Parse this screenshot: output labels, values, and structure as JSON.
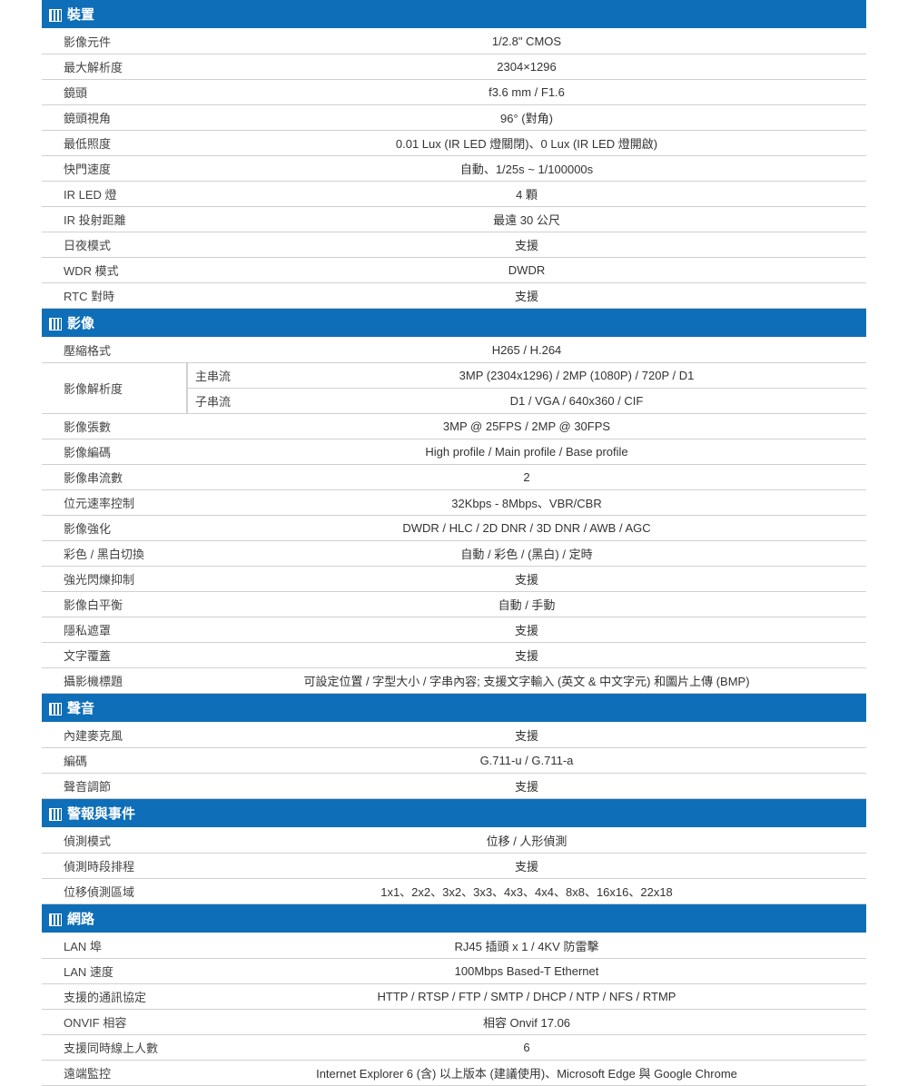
{
  "colors": {
    "header_bg": "#0e6eb8",
    "header_text": "#ffffff",
    "border": "#d0d0d0",
    "text": "#333333"
  },
  "sections": [
    {
      "title": "裝置",
      "rows": [
        {
          "label": "影像元件",
          "value": "1/2.8\" CMOS"
        },
        {
          "label": "最大解析度",
          "value": "2304×1296"
        },
        {
          "label": "鏡頭",
          "value": "f3.6 mm / F1.6"
        },
        {
          "label": "鏡頭視角",
          "value": "96° (對角)"
        },
        {
          "label": "最低照度",
          "value": "0.01 Lux (IR LED 燈關閉)、0 Lux (IR LED 燈開啟)"
        },
        {
          "label": "快門速度",
          "value": "自動、1/25s ~ 1/100000s"
        },
        {
          "label": "IR LED 燈",
          "value": "4 顆"
        },
        {
          "label": "IR 投射距離",
          "value": "最遠 30 公尺"
        },
        {
          "label": "日夜模式",
          "value": "支援"
        },
        {
          "label": "WDR 模式",
          "value": "DWDR"
        },
        {
          "label": "RTC 對時",
          "value": "支援"
        }
      ]
    },
    {
      "title": "影像",
      "rows": [
        {
          "label": "壓縮格式",
          "value": "H265 / H.264"
        },
        {
          "label": "影像解析度",
          "subrows": [
            {
              "sublabel": "主串流",
              "value": "3MP (2304x1296) / 2MP (1080P) / 720P / D1"
            },
            {
              "sublabel": "子串流",
              "value": "D1 / VGA / 640x360 / CIF"
            }
          ]
        },
        {
          "label": "影像張數",
          "value": "3MP @ 25FPS / 2MP @ 30FPS"
        },
        {
          "label": "影像編碼",
          "value": "High profile / Main profile / Base profile"
        },
        {
          "label": "影像串流數",
          "value": "2"
        },
        {
          "label": "位元速率控制",
          "value": "32Kbps - 8Mbps、VBR/CBR"
        },
        {
          "label": "影像強化",
          "value": "DWDR / HLC / 2D DNR / 3D DNR / AWB / AGC"
        },
        {
          "label": "彩色 / 黑白切換",
          "value": "自動 / 彩色 / (黑白) / 定時"
        },
        {
          "label": "強光閃爍抑制",
          "value": "支援"
        },
        {
          "label": "影像白平衡",
          "value": "自動 / 手動"
        },
        {
          "label": "隱私遮罩",
          "value": "支援"
        },
        {
          "label": "文字覆蓋",
          "value": "支援"
        },
        {
          "label": "攝影機標題",
          "value": "可設定位置 / 字型大小 / 字串內容; 支援文字輸入 (英文 & 中文字元) 和圖片上傳 (BMP)"
        }
      ]
    },
    {
      "title": "聲音",
      "rows": [
        {
          "label": "內建麥克風",
          "value": "支援"
        },
        {
          "label": "編碼",
          "value": "G.711-u / G.711-a"
        },
        {
          "label": "聲音調節",
          "value": "支援"
        }
      ]
    },
    {
      "title": "警報與事件",
      "rows": [
        {
          "label": "偵測模式",
          "value": "位移 / 人形偵測"
        },
        {
          "label": "偵測時段排程",
          "value": "支援"
        },
        {
          "label": "位移偵測區域",
          "value": "1x1、2x2、3x2、3x3、4x3、4x4、8x8、16x16、22x18"
        }
      ]
    },
    {
      "title": "網路",
      "rows": [
        {
          "label": "LAN 埠",
          "value": "RJ45 插頭  x 1 / 4KV 防雷擊"
        },
        {
          "label": "LAN 速度",
          "value": "100Mbps Based-T Ethernet"
        },
        {
          "label": "支援的通訊協定",
          "value": "HTTP / RTSP / FTP / SMTP / DHCP / NTP / NFS / RTMP"
        },
        {
          "label": "ONVIF 相容",
          "value": "相容 Onvif 17.06"
        },
        {
          "label": "支援同時線上人數",
          "value": "6"
        },
        {
          "label": "遠端監控",
          "value": "Internet Explorer 6 (含) 以上版本 (建議使用)、Microsoft Edge 與 Google Chrome"
        }
      ]
    }
  ]
}
